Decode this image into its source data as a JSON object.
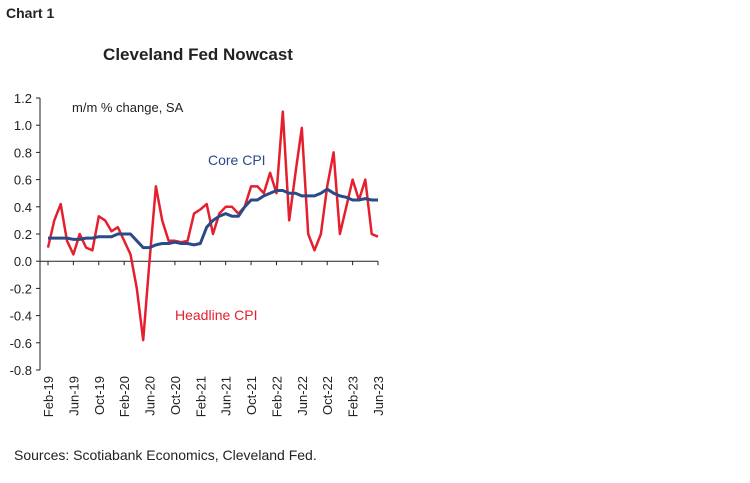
{
  "chart_data": {
    "type": "line",
    "label": "Chart 1",
    "title": "Cleveland Fed Nowcast",
    "unit_label": "m/m % change, SA",
    "source": "Sources: Scotiabank Economics, Cleveland Fed.",
    "categories": [
      "Feb-19",
      null,
      null,
      null,
      "Jun-19",
      null,
      null,
      null,
      "Oct-19",
      null,
      null,
      null,
      "Feb-20",
      null,
      null,
      null,
      "Jun-20",
      null,
      null,
      null,
      "Oct-20",
      null,
      null,
      null,
      "Feb-21",
      null,
      null,
      null,
      "Jun-21",
      null,
      null,
      null,
      "Oct-21",
      null,
      null,
      null,
      "Feb-22",
      null,
      null,
      null,
      "Jun-22",
      null,
      null,
      null,
      "Oct-22",
      null,
      null,
      null,
      "Feb-23",
      null,
      null,
      null,
      "Jun-23"
    ],
    "series": [
      {
        "name": "Headline CPI",
        "color": "#e5202e",
        "values": [
          0.1,
          0.3,
          0.42,
          0.15,
          0.05,
          0.2,
          0.1,
          0.08,
          0.33,
          0.3,
          0.22,
          0.25,
          0.15,
          0.05,
          -0.2,
          -0.58,
          0.0,
          0.55,
          0.3,
          0.15,
          0.15,
          0.14,
          0.15,
          0.35,
          0.38,
          0.42,
          0.2,
          0.35,
          0.4,
          0.4,
          0.35,
          0.4,
          0.55,
          0.55,
          0.5,
          0.65,
          0.5,
          1.1,
          0.3,
          0.65,
          0.98,
          0.2,
          0.08,
          0.2,
          0.55,
          0.8,
          0.2,
          0.4,
          0.6,
          0.45,
          0.6,
          0.2,
          0.18
        ]
      },
      {
        "name": "Core CPI",
        "color": "#2b4a86",
        "values": [
          0.17,
          0.17,
          0.17,
          0.17,
          0.16,
          0.16,
          0.17,
          0.17,
          0.18,
          0.18,
          0.18,
          0.2,
          0.2,
          0.2,
          0.15,
          0.1,
          0.1,
          0.12,
          0.13,
          0.13,
          0.14,
          0.13,
          0.13,
          0.12,
          0.13,
          0.25,
          0.3,
          0.33,
          0.35,
          0.33,
          0.33,
          0.4,
          0.45,
          0.45,
          0.48,
          0.5,
          0.52,
          0.52,
          0.5,
          0.5,
          0.48,
          0.48,
          0.48,
          0.5,
          0.53,
          0.5,
          0.48,
          0.47,
          0.45,
          0.45,
          0.46,
          0.45,
          0.45
        ]
      }
    ],
    "ylim": [
      -0.8,
      1.2
    ],
    "yticks": [
      -0.8,
      -0.6,
      -0.4,
      -0.2,
      {
        "value": 0,
        "label": "0.0"
      },
      0.2,
      0.4,
      0.6,
      0.8,
      {
        "value": 1,
        "label": "1.0"
      },
      1.2
    ]
  }
}
